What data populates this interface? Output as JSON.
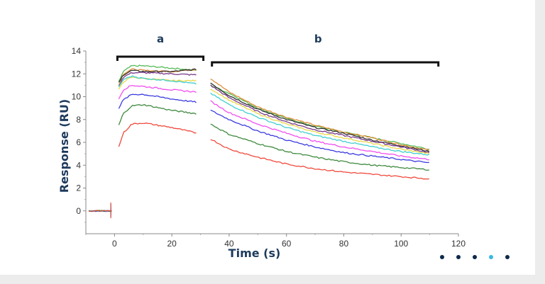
{
  "chart_data": {
    "type": "line",
    "xlabel": "Time (s)",
    "ylabel": "Response (RU)",
    "xlim": [
      -10,
      120
    ],
    "ylim": [
      -2,
      14
    ],
    "x_ticks": [
      0,
      20,
      40,
      60,
      80,
      100,
      120
    ],
    "y_ticks": [
      0,
      2,
      4,
      6,
      8,
      10,
      12,
      14
    ],
    "grid": false,
    "legend": "none",
    "annotations": [
      {
        "label": "a",
        "x_range": [
          1,
          31
        ]
      },
      {
        "label": "b",
        "x_range": [
          34,
          113
        ]
      }
    ],
    "baseline": {
      "x_range": [
        -9,
        -1
      ],
      "value": 0
    },
    "series": [
      {
        "color": "#55bb55",
        "association": [
          [
            1.5,
            11.3
          ],
          [
            3,
            12.2
          ],
          [
            6,
            12.7
          ],
          [
            10,
            12.7
          ],
          [
            20,
            12.5
          ],
          [
            29,
            12.3
          ]
        ],
        "dissociation": [
          [
            33.5,
            11.0
          ],
          [
            40,
            10.3
          ],
          [
            50,
            9.0
          ],
          [
            60,
            8.1
          ],
          [
            70,
            7.4
          ],
          [
            80,
            6.9
          ],
          [
            90,
            6.4
          ],
          [
            100,
            5.9
          ],
          [
            110,
            5.4
          ]
        ]
      },
      {
        "color": "#e08f3a",
        "association": [
          [
            1.5,
            11.0
          ],
          [
            3,
            12.0
          ],
          [
            6,
            12.4
          ],
          [
            10,
            12.3
          ],
          [
            20,
            12.2
          ],
          [
            29,
            12.4
          ]
        ],
        "dissociation": [
          [
            33.5,
            11.6
          ],
          [
            40,
            10.4
          ],
          [
            50,
            9.1
          ],
          [
            60,
            8.2
          ],
          [
            70,
            7.5
          ],
          [
            80,
            6.9
          ],
          [
            90,
            6.4
          ],
          [
            100,
            5.8
          ],
          [
            110,
            5.3
          ]
        ]
      },
      {
        "color": "#333333",
        "association": [
          [
            1.5,
            11.2
          ],
          [
            3,
            11.9
          ],
          [
            6,
            12.3
          ],
          [
            10,
            12.2
          ],
          [
            20,
            12.2
          ],
          [
            29,
            12.4
          ]
        ],
        "dissociation": [
          [
            33.5,
            11.2
          ],
          [
            40,
            10.1
          ],
          [
            50,
            8.9
          ],
          [
            60,
            8.0
          ],
          [
            70,
            7.3
          ],
          [
            80,
            6.8
          ],
          [
            90,
            6.2
          ],
          [
            100,
            5.7
          ],
          [
            110,
            5.2
          ]
        ]
      },
      {
        "color": "#7a3a8a",
        "association": [
          [
            1.5,
            10.9
          ],
          [
            3,
            11.7
          ],
          [
            6,
            12.1
          ],
          [
            10,
            12.1
          ],
          [
            20,
            12.0
          ],
          [
            29,
            11.9
          ]
        ],
        "dissociation": [
          [
            33.5,
            11.0
          ],
          [
            40,
            9.9
          ],
          [
            50,
            8.7
          ],
          [
            60,
            7.8
          ],
          [
            70,
            7.1
          ],
          [
            80,
            6.6
          ],
          [
            90,
            6.1
          ],
          [
            100,
            5.6
          ],
          [
            110,
            5.1
          ]
        ]
      },
      {
        "color": "#e9d94a",
        "association": [
          [
            1.5,
            10.6
          ],
          [
            3,
            11.3
          ],
          [
            6,
            11.7
          ],
          [
            10,
            11.6
          ],
          [
            20,
            11.4
          ],
          [
            29,
            11.4
          ]
        ],
        "dissociation": [
          [
            33.5,
            10.7
          ],
          [
            40,
            9.7
          ],
          [
            50,
            8.5
          ],
          [
            60,
            7.6
          ],
          [
            70,
            6.9
          ],
          [
            80,
            6.4
          ],
          [
            90,
            5.9
          ],
          [
            100,
            5.4
          ],
          [
            110,
            5.0
          ]
        ]
      },
      {
        "color": "#40cfd0",
        "association": [
          [
            1.5,
            10.8
          ],
          [
            3,
            11.5
          ],
          [
            6,
            11.8
          ],
          [
            10,
            11.6
          ],
          [
            20,
            11.4
          ],
          [
            29,
            11.1
          ]
        ],
        "dissociation": [
          [
            33.5,
            10.3
          ],
          [
            40,
            9.3
          ],
          [
            50,
            8.2
          ],
          [
            60,
            7.3
          ],
          [
            70,
            6.6
          ],
          [
            80,
            6.1
          ],
          [
            90,
            5.6
          ],
          [
            100,
            5.2
          ],
          [
            110,
            4.9
          ]
        ]
      },
      {
        "color": "#f14ef0",
        "association": [
          [
            1.5,
            9.8
          ],
          [
            3,
            10.6
          ],
          [
            6,
            11.0
          ],
          [
            10,
            10.9
          ],
          [
            20,
            10.6
          ],
          [
            29,
            10.4
          ]
        ],
        "dissociation": [
          [
            33.5,
            9.6
          ],
          [
            40,
            8.6
          ],
          [
            50,
            7.6
          ],
          [
            60,
            6.8
          ],
          [
            70,
            6.1
          ],
          [
            80,
            5.6
          ],
          [
            90,
            5.2
          ],
          [
            100,
            4.8
          ],
          [
            110,
            4.5
          ]
        ]
      },
      {
        "color": "#3b3be0",
        "association": [
          [
            1.5,
            9.0
          ],
          [
            3,
            9.7
          ],
          [
            6,
            10.2
          ],
          [
            10,
            10.2
          ],
          [
            20,
            9.8
          ],
          [
            29,
            9.5
          ]
        ],
        "dissociation": [
          [
            33.5,
            8.8
          ],
          [
            40,
            8.0
          ],
          [
            50,
            7.0
          ],
          [
            60,
            6.2
          ],
          [
            70,
            5.6
          ],
          [
            80,
            5.1
          ],
          [
            90,
            4.8
          ],
          [
            100,
            4.5
          ],
          [
            110,
            4.2
          ]
        ]
      },
      {
        "color": "#3f8a3f",
        "association": [
          [
            1.5,
            7.5
          ],
          [
            3,
            8.5
          ],
          [
            6,
            9.2
          ],
          [
            10,
            9.3
          ],
          [
            20,
            8.8
          ],
          [
            29,
            8.5
          ]
        ],
        "dissociation": [
          [
            33.5,
            7.6
          ],
          [
            40,
            6.7
          ],
          [
            50,
            5.9
          ],
          [
            60,
            5.2
          ],
          [
            70,
            4.7
          ],
          [
            80,
            4.3
          ],
          [
            90,
            4.0
          ],
          [
            100,
            3.8
          ],
          [
            110,
            3.6
          ]
        ]
      },
      {
        "color": "#f04a3c",
        "association": [
          [
            1.5,
            5.6
          ],
          [
            3,
            6.8
          ],
          [
            6,
            7.6
          ],
          [
            10,
            7.7
          ],
          [
            20,
            7.3
          ],
          [
            29,
            6.8
          ]
        ],
        "dissociation": [
          [
            33.5,
            6.3
          ],
          [
            40,
            5.4
          ],
          [
            50,
            4.7
          ],
          [
            60,
            4.1
          ],
          [
            70,
            3.7
          ],
          [
            80,
            3.4
          ],
          [
            90,
            3.2
          ],
          [
            100,
            3.0
          ],
          [
            110,
            2.8
          ]
        ]
      }
    ]
  },
  "carousel": {
    "active_index": 3,
    "dots": 5,
    "dot_color": "#0e2a4a",
    "active_color": "#3ab8e0"
  }
}
